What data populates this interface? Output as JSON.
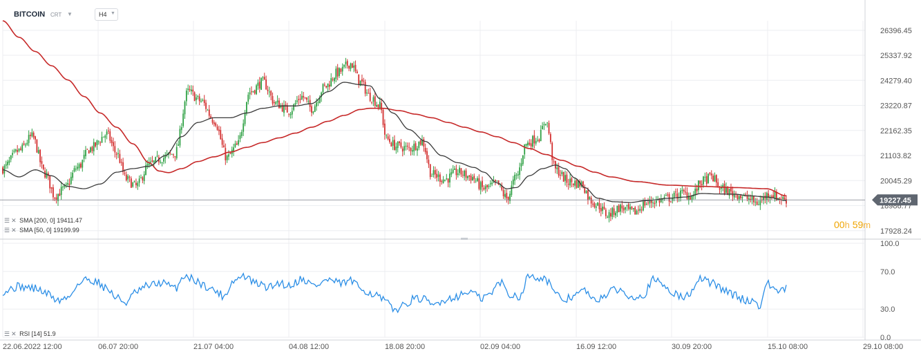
{
  "header": {
    "symbol": "BITCOIN",
    "sub": "CRT",
    "timeframe": "H4"
  },
  "countdown": {
    "hours": "00",
    "h_unit": "h",
    "minutes": "59",
    "m_unit": "m"
  },
  "indicators": {
    "sma200": {
      "label": "SMA [200, 0]",
      "value": "19411.47",
      "color": "#c62828"
    },
    "sma50": {
      "label": "SMA [50, 0]",
      "value": "19199.99",
      "color": "#3a3a3a"
    },
    "rsi": {
      "label": "RSI [14]",
      "value": "51.9",
      "color": "#2b8ee6"
    }
  },
  "colors": {
    "up": "#2ea043",
    "down": "#d32f2f",
    "grid": "#eceef1",
    "price_line": "#7a7f88",
    "last_price_bg": "#5f6670"
  },
  "chart_data": [
    {
      "type": "candlestick",
      "title": "BITCOIN",
      "last_price": 19227.45,
      "last_price_label": "19227.45",
      "ylim": [
        17600,
        26800
      ],
      "y_ticks": [
        "26396.45",
        "25337.92",
        "24279.40",
        "23220.87",
        "22162.35",
        "21103.82",
        "20045.29",
        "18986.77",
        "17928.24"
      ],
      "x_ticks": [
        "22.06.2022  12:00",
        "06.07  20:00",
        "21.07  04:00",
        "04.08  12:00",
        "18.08  20:00",
        "02.09  04:00",
        "16.09  12:00",
        "30.09  20:00",
        "15.10  08:00",
        "29.10  08:00"
      ],
      "close_anchors": [
        [
          0,
          20550
        ],
        [
          10,
          21300
        ],
        [
          18,
          21900
        ],
        [
          26,
          20350
        ],
        [
          32,
          19400
        ],
        [
          38,
          19700
        ],
        [
          46,
          20600
        ],
        [
          54,
          21400
        ],
        [
          64,
          22000
        ],
        [
          70,
          21200
        ],
        [
          76,
          20100
        ],
        [
          82,
          19800
        ],
        [
          90,
          20700
        ],
        [
          98,
          21000
        ],
        [
          106,
          21200
        ],
        [
          114,
          23800
        ],
        [
          122,
          23400
        ],
        [
          130,
          22600
        ],
        [
          138,
          21000
        ],
        [
          144,
          21500
        ],
        [
          152,
          23800
        ],
        [
          160,
          24200
        ],
        [
          168,
          23300
        ],
        [
          176,
          23000
        ],
        [
          184,
          23600
        ],
        [
          190,
          23100
        ],
        [
          198,
          24000
        ],
        [
          206,
          24600
        ],
        [
          214,
          25000
        ],
        [
          220,
          24200
        ],
        [
          226,
          23600
        ],
        [
          232,
          23200
        ],
        [
          236,
          21800
        ],
        [
          242,
          21500
        ],
        [
          250,
          21400
        ],
        [
          258,
          21700
        ],
        [
          264,
          20300
        ],
        [
          272,
          20100
        ],
        [
          280,
          20400
        ],
        [
          288,
          20200
        ],
        [
          296,
          19700
        ],
        [
          304,
          19900
        ],
        [
          310,
          19300
        ],
        [
          316,
          20200
        ],
        [
          322,
          21600
        ],
        [
          330,
          21900
        ],
        [
          334,
          22600
        ],
        [
          340,
          20500
        ],
        [
          348,
          20000
        ],
        [
          356,
          19900
        ],
        [
          362,
          19200
        ],
        [
          366,
          19000
        ],
        [
          372,
          18600
        ],
        [
          380,
          18900
        ],
        [
          388,
          18700
        ],
        [
          396,
          19100
        ],
        [
          402,
          19200
        ],
        [
          410,
          19300
        ],
        [
          418,
          19500
        ],
        [
          424,
          19400
        ],
        [
          430,
          20000
        ],
        [
          436,
          20200
        ],
        [
          442,
          19700
        ],
        [
          450,
          19500
        ],
        [
          458,
          19300
        ],
        [
          464,
          19100
        ],
        [
          472,
          19500
        ],
        [
          478,
          19300
        ],
        [
          482,
          19230
        ]
      ],
      "sma50_anchors": [
        [
          0,
          20500
        ],
        [
          10,
          20200
        ],
        [
          20,
          20500
        ],
        [
          30,
          20250
        ],
        [
          40,
          19800
        ],
        [
          50,
          19700
        ],
        [
          60,
          19900
        ],
        [
          70,
          20400
        ],
        [
          80,
          20550
        ],
        [
          90,
          20650
        ],
        [
          100,
          21100
        ],
        [
          110,
          21900
        ],
        [
          120,
          22500
        ],
        [
          130,
          22700
        ],
        [
          140,
          22700
        ],
        [
          150,
          22900
        ],
        [
          160,
          23100
        ],
        [
          170,
          23200
        ],
        [
          180,
          23200
        ],
        [
          190,
          23300
        ],
        [
          200,
          23800
        ],
        [
          210,
          24200
        ],
        [
          220,
          24100
        ],
        [
          226,
          24050
        ],
        [
          232,
          23500
        ],
        [
          240,
          22900
        ],
        [
          250,
          22200
        ],
        [
          260,
          21700
        ],
        [
          270,
          21100
        ],
        [
          280,
          20800
        ],
        [
          290,
          20600
        ],
        [
          296,
          20400
        ],
        [
          304,
          19950
        ],
        [
          310,
          19700
        ],
        [
          316,
          19750
        ],
        [
          324,
          20250
        ],
        [
          332,
          20550
        ],
        [
          340,
          20700
        ],
        [
          346,
          20550
        ],
        [
          352,
          20150
        ],
        [
          358,
          19750
        ],
        [
          366,
          19300
        ],
        [
          376,
          19150
        ],
        [
          386,
          19120
        ],
        [
          396,
          19200
        ],
        [
          410,
          19300
        ],
        [
          420,
          19350
        ],
        [
          430,
          19500
        ],
        [
          440,
          19480
        ],
        [
          450,
          19470
        ],
        [
          460,
          19400
        ],
        [
          470,
          19350
        ],
        [
          482,
          19200
        ]
      ],
      "sma200_anchors": [
        [
          0,
          26800
        ],
        [
          10,
          26100
        ],
        [
          20,
          25500
        ],
        [
          30,
          24900
        ],
        [
          40,
          24300
        ],
        [
          50,
          23600
        ],
        [
          60,
          22900
        ],
        [
          70,
          22300
        ],
        [
          80,
          21600
        ],
        [
          90,
          20800
        ],
        [
          96,
          20450
        ],
        [
          102,
          20380
        ],
        [
          110,
          20550
        ],
        [
          120,
          20850
        ],
        [
          130,
          21050
        ],
        [
          140,
          21250
        ],
        [
          150,
          21450
        ],
        [
          160,
          21650
        ],
        [
          170,
          21850
        ],
        [
          180,
          22050
        ],
        [
          190,
          22300
        ],
        [
          200,
          22550
        ],
        [
          210,
          22800
        ],
        [
          220,
          23050
        ],
        [
          226,
          23100
        ],
        [
          234,
          23100
        ],
        [
          244,
          23000
        ],
        [
          254,
          22850
        ],
        [
          264,
          22700
        ],
        [
          274,
          22500
        ],
        [
          284,
          22300
        ],
        [
          294,
          22100
        ],
        [
          304,
          21900
        ],
        [
          314,
          21650
        ],
        [
          324,
          21400
        ],
        [
          334,
          21150
        ],
        [
          344,
          20900
        ],
        [
          354,
          20650
        ],
        [
          364,
          20400
        ],
        [
          374,
          20200
        ],
        [
          390,
          20000
        ],
        [
          410,
          19850
        ],
        [
          430,
          19800
        ],
        [
          450,
          19750
        ],
        [
          470,
          19700
        ],
        [
          482,
          19400
        ]
      ],
      "rsi_anchors": [
        [
          0,
          49
        ],
        [
          10,
          54
        ],
        [
          20,
          52
        ],
        [
          28,
          46
        ],
        [
          34,
          39
        ],
        [
          40,
          42
        ],
        [
          46,
          56
        ],
        [
          52,
          62
        ],
        [
          58,
          59
        ],
        [
          64,
          52
        ],
        [
          70,
          42
        ],
        [
          76,
          37
        ],
        [
          82,
          48
        ],
        [
          90,
          55
        ],
        [
          98,
          58
        ],
        [
          106,
          52
        ],
        [
          112,
          66
        ],
        [
          118,
          61
        ],
        [
          124,
          55
        ],
        [
          130,
          50
        ],
        [
          136,
          44
        ],
        [
          142,
          60
        ],
        [
          148,
          65
        ],
        [
          156,
          57
        ],
        [
          164,
          53
        ],
        [
          170,
          58
        ],
        [
          176,
          55
        ],
        [
          184,
          62
        ],
        [
          192,
          55
        ],
        [
          200,
          61
        ],
        [
          208,
          57
        ],
        [
          214,
          60
        ],
        [
          220,
          52
        ],
        [
          228,
          46
        ],
        [
          236,
          38
        ],
        [
          240,
          29
        ],
        [
          246,
          33
        ],
        [
          252,
          40
        ],
        [
          258,
          41
        ],
        [
          264,
          34
        ],
        [
          272,
          40
        ],
        [
          280,
          44
        ],
        [
          288,
          49
        ],
        [
          294,
          41
        ],
        [
          300,
          46
        ],
        [
          306,
          59
        ],
        [
          312,
          45
        ],
        [
          318,
          44
        ],
        [
          324,
          66
        ],
        [
          330,
          64
        ],
        [
          336,
          60
        ],
        [
          340,
          44
        ],
        [
          346,
          40
        ],
        [
          352,
          45
        ],
        [
          358,
          50
        ],
        [
          364,
          38
        ],
        [
          370,
          45
        ],
        [
          378,
          51
        ],
        [
          386,
          44
        ],
        [
          394,
          45
        ],
        [
          400,
          61
        ],
        [
          406,
          56
        ],
        [
          412,
          48
        ],
        [
          418,
          42
        ],
        [
          424,
          48
        ],
        [
          430,
          63
        ],
        [
          436,
          58
        ],
        [
          442,
          52
        ],
        [
          450,
          45
        ],
        [
          456,
          40
        ],
        [
          462,
          38
        ],
        [
          466,
          34
        ],
        [
          470,
          57
        ],
        [
          474,
          53
        ],
        [
          478,
          48
        ],
        [
          482,
          51.9
        ]
      ],
      "rsi_ticks": [
        "100.0",
        "70.0",
        "30.0",
        "0.0"
      ]
    }
  ]
}
